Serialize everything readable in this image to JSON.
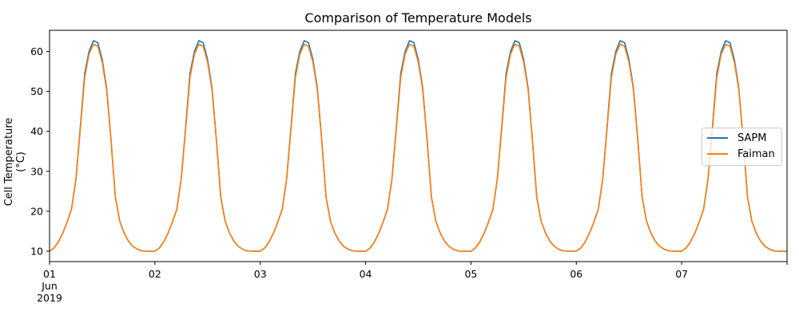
{
  "chart_data": {
    "type": "line",
    "title": "Comparison of Temperature Models",
    "xlabel": "",
    "ylabel": "Cell Temperature (°C)",
    "ylim": [
      7.4,
      65.3
    ],
    "yticks": [
      10,
      20,
      30,
      40,
      50,
      60
    ],
    "xticks": [
      "01\nJun\n2019",
      "02",
      "03",
      "04",
      "05",
      "06",
      "07"
    ],
    "x_range": [
      "2019-06-01 00:00",
      "2019-06-08 00:00"
    ],
    "x_frequency": "hourly",
    "grid": false,
    "legend_position": "center right",
    "daily_profile_hours": [
      0,
      1,
      2,
      3,
      4,
      5,
      6,
      7,
      8,
      9,
      10,
      11,
      12,
      13,
      14,
      15,
      16,
      17,
      18,
      19,
      20,
      21,
      22,
      23
    ],
    "series": [
      {
        "name": "SAPM",
        "color": "#1f77b4",
        "daily_profile": [
          10.0,
          10.8,
          12.3,
          14.5,
          17.3,
          20.5,
          28.0,
          41.0,
          54.5,
          60.0,
          62.7,
          62.2,
          58.0,
          51.0,
          38.0,
          23.5,
          17.5,
          14.5,
          12.5,
          11.2,
          10.5,
          10.1,
          10.0,
          10.0
        ]
      },
      {
        "name": "Faiman",
        "color": "#ff7f0e",
        "daily_profile": [
          10.0,
          10.8,
          12.3,
          14.5,
          17.3,
          20.5,
          28.0,
          40.5,
          53.5,
          59.3,
          61.8,
          61.3,
          57.3,
          50.5,
          37.8,
          23.5,
          17.5,
          14.5,
          12.5,
          11.2,
          10.5,
          10.1,
          10.0,
          10.0
        ]
      }
    ],
    "days": 7
  },
  "legend": {
    "items": [
      {
        "label": "SAPM",
        "color": "#1f77b4"
      },
      {
        "label": "Faiman",
        "color": "#ff7f0e"
      }
    ]
  }
}
